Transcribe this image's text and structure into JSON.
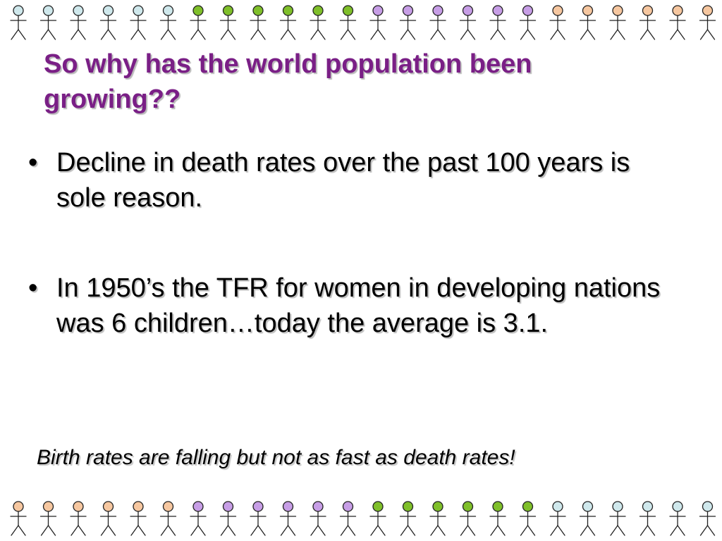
{
  "slide": {
    "title": "So why has the world population been growing??",
    "bullets": [
      {
        "marker": "•",
        "text": "Decline in death rates over the past 100 years is sole reason."
      },
      {
        "marker": "•",
        "text": "In 1950’s the TFR for women in developing nations was 6 children…today the average is 3.1."
      }
    ],
    "footnote": "Birth rates are falling but not as fast as death rates!"
  },
  "decor": {
    "icon": "stick-figure-icon",
    "top_row_colors": [
      "#cfe8ec",
      "#cfe8ec",
      "#cfe8ec",
      "#cfe8ec",
      "#cfe8ec",
      "#cfe8ec",
      "#7fbf2a",
      "#7fbf2a",
      "#7fbf2a",
      "#7fbf2a",
      "#7fbf2a",
      "#7fbf2a",
      "#c79ee6",
      "#c79ee6",
      "#c79ee6",
      "#c79ee6",
      "#c79ee6",
      "#c79ee6",
      "#f6c7a0",
      "#f6c7a0",
      "#f6c7a0",
      "#f6c7a0",
      "#f6c7a0",
      "#f6c7a0"
    ],
    "bottom_row_colors": [
      "#f6c7a0",
      "#f6c7a0",
      "#f6c7a0",
      "#f6c7a0",
      "#f6c7a0",
      "#f6c7a0",
      "#c79ee6",
      "#c79ee6",
      "#c79ee6",
      "#c79ee6",
      "#c79ee6",
      "#c79ee6",
      "#7fbf2a",
      "#7fbf2a",
      "#7fbf2a",
      "#7fbf2a",
      "#7fbf2a",
      "#7fbf2a",
      "#cfe8ec",
      "#cfe8ec",
      "#cfe8ec",
      "#cfe8ec",
      "#cfe8ec",
      "#cfe8ec"
    ],
    "figure_stroke": "#222222"
  }
}
